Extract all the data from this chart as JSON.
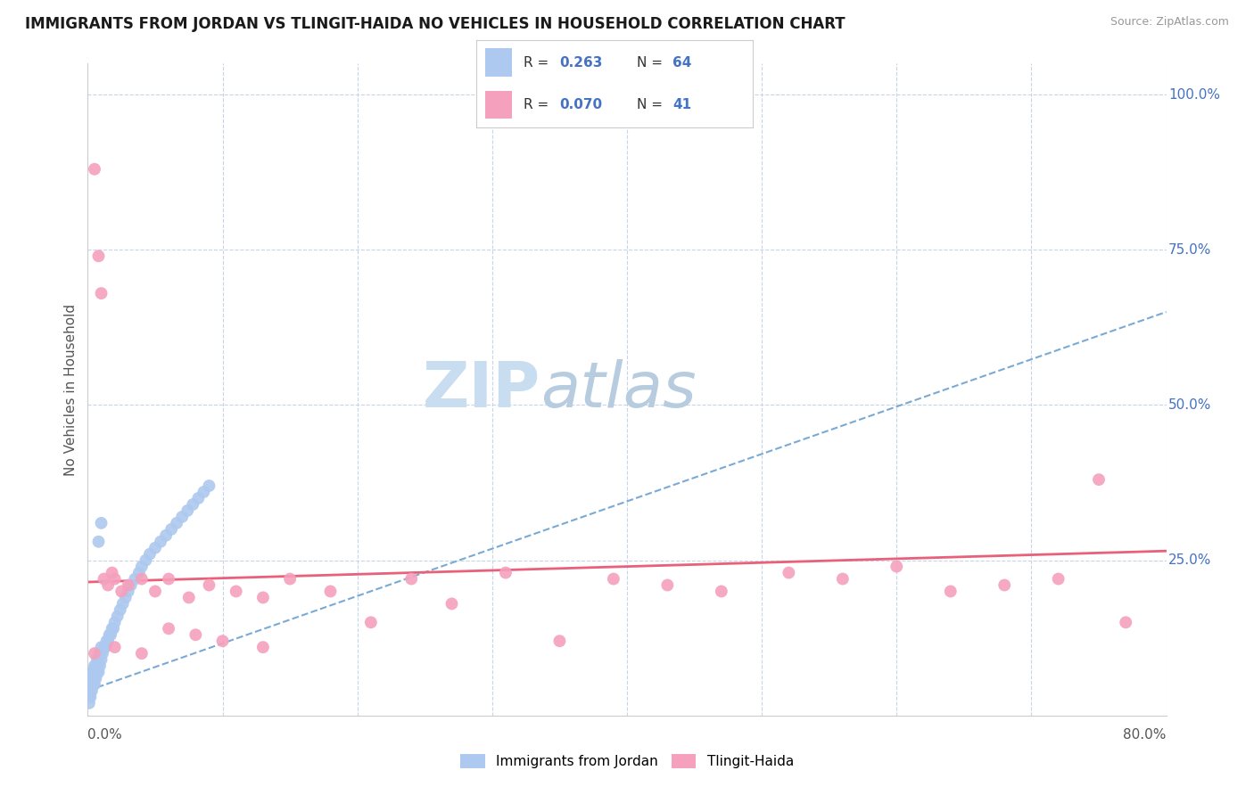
{
  "title": "IMMIGRANTS FROM JORDAN VS TLINGIT-HAIDA NO VEHICLES IN HOUSEHOLD CORRELATION CHART",
  "source": "Source: ZipAtlas.com",
  "ylabel": "No Vehicles in Household",
  "xmin": 0.0,
  "xmax": 0.8,
  "ymin": 0.0,
  "ymax": 1.05,
  "color_blue": "#adc9ef",
  "color_blue_line": "#7aaad4",
  "color_blue_solid": "#3a78c9",
  "color_pink": "#f5a0bc",
  "color_pink_line": "#e8607a",
  "blue_r": "0.263",
  "blue_n": "64",
  "pink_r": "0.070",
  "pink_n": "41",
  "blue_trend_x0": 0.0,
  "blue_trend_y0": 0.04,
  "blue_trend_x1": 0.8,
  "blue_trend_y1": 0.65,
  "pink_trend_x0": 0.0,
  "pink_trend_y0": 0.215,
  "pink_trend_x1": 0.8,
  "pink_trend_y1": 0.265,
  "blue_x": [
    0.001,
    0.001,
    0.001,
    0.001,
    0.002,
    0.002,
    0.002,
    0.002,
    0.003,
    0.003,
    0.003,
    0.003,
    0.004,
    0.004,
    0.004,
    0.005,
    0.005,
    0.005,
    0.006,
    0.006,
    0.006,
    0.007,
    0.007,
    0.007,
    0.008,
    0.008,
    0.009,
    0.009,
    0.01,
    0.01,
    0.011,
    0.012,
    0.013,
    0.014,
    0.015,
    0.016,
    0.017,
    0.018,
    0.019,
    0.02,
    0.022,
    0.024,
    0.026,
    0.028,
    0.03,
    0.032,
    0.035,
    0.038,
    0.04,
    0.043,
    0.046,
    0.05,
    0.054,
    0.058,
    0.062,
    0.066,
    0.07,
    0.074,
    0.078,
    0.082,
    0.086,
    0.09,
    0.01,
    0.008
  ],
  "blue_y": [
    0.02,
    0.03,
    0.04,
    0.05,
    0.03,
    0.04,
    0.05,
    0.06,
    0.04,
    0.05,
    0.06,
    0.07,
    0.05,
    0.06,
    0.07,
    0.05,
    0.06,
    0.08,
    0.06,
    0.07,
    0.08,
    0.07,
    0.08,
    0.09,
    0.07,
    0.09,
    0.08,
    0.1,
    0.09,
    0.11,
    0.1,
    0.11,
    0.11,
    0.12,
    0.12,
    0.13,
    0.13,
    0.14,
    0.14,
    0.15,
    0.16,
    0.17,
    0.18,
    0.19,
    0.2,
    0.21,
    0.22,
    0.23,
    0.24,
    0.25,
    0.26,
    0.27,
    0.28,
    0.29,
    0.3,
    0.31,
    0.32,
    0.33,
    0.34,
    0.35,
    0.36,
    0.37,
    0.31,
    0.28
  ],
  "pink_x": [
    0.005,
    0.008,
    0.01,
    0.012,
    0.015,
    0.018,
    0.02,
    0.025,
    0.03,
    0.04,
    0.05,
    0.06,
    0.075,
    0.09,
    0.11,
    0.13,
    0.15,
    0.18,
    0.21,
    0.24,
    0.27,
    0.31,
    0.35,
    0.39,
    0.43,
    0.47,
    0.52,
    0.56,
    0.6,
    0.64,
    0.68,
    0.72,
    0.75,
    0.02,
    0.04,
    0.06,
    0.08,
    0.1,
    0.13,
    0.77,
    0.005
  ],
  "pink_y": [
    0.88,
    0.74,
    0.68,
    0.22,
    0.21,
    0.23,
    0.22,
    0.2,
    0.21,
    0.22,
    0.2,
    0.22,
    0.19,
    0.21,
    0.2,
    0.19,
    0.22,
    0.2,
    0.15,
    0.22,
    0.18,
    0.23,
    0.12,
    0.22,
    0.21,
    0.2,
    0.23,
    0.22,
    0.24,
    0.2,
    0.21,
    0.22,
    0.38,
    0.11,
    0.1,
    0.14,
    0.13,
    0.12,
    0.11,
    0.15,
    0.1
  ],
  "background_color": "#ffffff",
  "grid_color": "#c8d4e8",
  "grid_style": "--"
}
